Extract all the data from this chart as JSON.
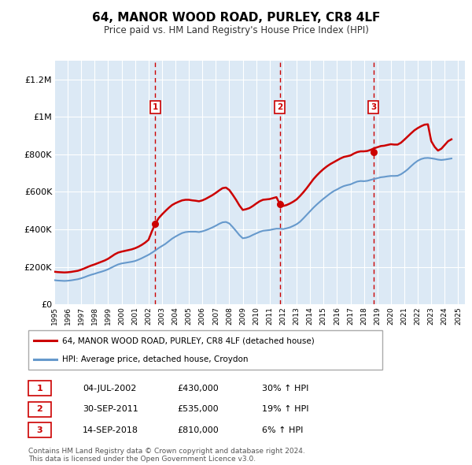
{
  "title": "64, MANOR WOOD ROAD, PURLEY, CR8 4LF",
  "subtitle": "Price paid vs. HM Land Registry's House Price Index (HPI)",
  "ylabel_ticks": [
    "£0",
    "£200K",
    "£400K",
    "£600K",
    "£800K",
    "£1M",
    "£1.2M"
  ],
  "ytick_values": [
    0,
    200000,
    400000,
    600000,
    800000,
    1000000,
    1200000
  ],
  "ylim": [
    0,
    1300000
  ],
  "xlim_start": 1995.0,
  "xlim_end": 2025.5,
  "bg_color": "#dce9f5",
  "red_line_color": "#cc0000",
  "blue_line_color": "#6699cc",
  "dashed_vline_color": "#cc0000",
  "sale_markers": [
    {
      "date_num": 2002.5,
      "price": 430000,
      "label": "1"
    },
    {
      "date_num": 2011.75,
      "price": 535000,
      "label": "2"
    },
    {
      "date_num": 2018.7,
      "price": 810000,
      "label": "3"
    }
  ],
  "legend_entries": [
    {
      "label": "64, MANOR WOOD ROAD, PURLEY, CR8 4LF (detached house)",
      "color": "#cc0000",
      "lw": 2
    },
    {
      "label": "HPI: Average price, detached house, Croydon",
      "color": "#6699cc",
      "lw": 2
    }
  ],
  "table_rows": [
    {
      "num": "1",
      "date": "04-JUL-2002",
      "price": "£430,000",
      "pct": "30% ↑ HPI"
    },
    {
      "num": "2",
      "date": "30-SEP-2011",
      "price": "£535,000",
      "pct": "19% ↑ HPI"
    },
    {
      "num": "3",
      "date": "14-SEP-2018",
      "price": "£810,000",
      "pct": "6% ↑ HPI"
    }
  ],
  "footnote": "Contains HM Land Registry data © Crown copyright and database right 2024.\nThis data is licensed under the Open Government Licence v3.0.",
  "hpi_data": {
    "years": [
      1995.0,
      1995.25,
      1995.5,
      1995.75,
      1996.0,
      1996.25,
      1996.5,
      1996.75,
      1997.0,
      1997.25,
      1997.5,
      1997.75,
      1998.0,
      1998.25,
      1998.5,
      1998.75,
      1999.0,
      1999.25,
      1999.5,
      1999.75,
      2000.0,
      2000.25,
      2000.5,
      2000.75,
      2001.0,
      2001.25,
      2001.5,
      2001.75,
      2002.0,
      2002.25,
      2002.5,
      2002.75,
      2003.0,
      2003.25,
      2003.5,
      2003.75,
      2004.0,
      2004.25,
      2004.5,
      2004.75,
      2005.0,
      2005.25,
      2005.5,
      2005.75,
      2006.0,
      2006.25,
      2006.5,
      2006.75,
      2007.0,
      2007.25,
      2007.5,
      2007.75,
      2008.0,
      2008.25,
      2008.5,
      2008.75,
      2009.0,
      2009.25,
      2009.5,
      2009.75,
      2010.0,
      2010.25,
      2010.5,
      2010.75,
      2011.0,
      2011.25,
      2011.5,
      2011.75,
      2012.0,
      2012.25,
      2012.5,
      2012.75,
      2013.0,
      2013.25,
      2013.5,
      2013.75,
      2014.0,
      2014.25,
      2014.5,
      2014.75,
      2015.0,
      2015.25,
      2015.5,
      2015.75,
      2016.0,
      2016.25,
      2016.5,
      2016.75,
      2017.0,
      2017.25,
      2017.5,
      2017.75,
      2018.0,
      2018.25,
      2018.5,
      2018.75,
      2019.0,
      2019.25,
      2019.5,
      2019.75,
      2020.0,
      2020.25,
      2020.5,
      2020.75,
      2021.0,
      2021.25,
      2021.5,
      2021.75,
      2022.0,
      2022.25,
      2022.5,
      2022.75,
      2023.0,
      2023.25,
      2023.5,
      2023.75,
      2024.0,
      2024.25,
      2024.5
    ],
    "values": [
      130000,
      128000,
      127000,
      126000,
      127000,
      129000,
      132000,
      135000,
      140000,
      146000,
      153000,
      159000,
      164000,
      170000,
      175000,
      181000,
      188000,
      197000,
      206000,
      214000,
      219000,
      222000,
      225000,
      228000,
      232000,
      239000,
      247000,
      256000,
      265000,
      276000,
      288000,
      301000,
      312000,
      323000,
      337000,
      351000,
      362000,
      372000,
      381000,
      386000,
      388000,
      388000,
      388000,
      386000,
      390000,
      396000,
      403000,
      411000,
      420000,
      430000,
      438000,
      440000,
      432000,
      413000,
      392000,
      370000,
      353000,
      356000,
      362000,
      371000,
      379000,
      387000,
      393000,
      395000,
      397000,
      401000,
      404000,
      404000,
      402000,
      406000,
      411000,
      419000,
      428000,
      441000,
      459000,
      478000,
      497000,
      516000,
      533000,
      549000,
      564000,
      578000,
      592000,
      604000,
      613000,
      623000,
      631000,
      636000,
      640000,
      648000,
      655000,
      658000,
      657000,
      659000,
      664000,
      669000,
      673000,
      678000,
      680000,
      683000,
      685000,
      685000,
      686000,
      694000,
      706000,
      720000,
      737000,
      753000,
      766000,
      775000,
      780000,
      781000,
      779000,
      776000,
      772000,
      770000,
      772000,
      775000,
      778000
    ]
  },
  "red_data": {
    "years": [
      1995.0,
      1995.25,
      1995.5,
      1995.75,
      1996.0,
      1996.25,
      1996.5,
      1996.75,
      1997.0,
      1997.25,
      1997.5,
      1997.75,
      1998.0,
      1998.25,
      1998.5,
      1998.75,
      1999.0,
      1999.25,
      1999.5,
      1999.75,
      2000.0,
      2000.25,
      2000.5,
      2000.75,
      2001.0,
      2001.25,
      2001.5,
      2001.75,
      2002.0,
      2002.25,
      2002.5,
      2002.75,
      2003.0,
      2003.25,
      2003.5,
      2003.75,
      2004.0,
      2004.25,
      2004.5,
      2004.75,
      2005.0,
      2005.25,
      2005.5,
      2005.75,
      2006.0,
      2006.25,
      2006.5,
      2006.75,
      2007.0,
      2007.25,
      2007.5,
      2007.75,
      2008.0,
      2008.25,
      2008.5,
      2008.75,
      2009.0,
      2009.25,
      2009.5,
      2009.75,
      2010.0,
      2010.25,
      2010.5,
      2010.75,
      2011.0,
      2011.25,
      2011.5,
      2011.75,
      2012.0,
      2012.25,
      2012.5,
      2012.75,
      2013.0,
      2013.25,
      2013.5,
      2013.75,
      2014.0,
      2014.25,
      2014.5,
      2014.75,
      2015.0,
      2015.25,
      2015.5,
      2015.75,
      2016.0,
      2016.25,
      2016.5,
      2016.75,
      2017.0,
      2017.25,
      2017.5,
      2017.75,
      2018.0,
      2018.25,
      2018.5,
      2018.75,
      2019.0,
      2019.25,
      2019.5,
      2019.75,
      2020.0,
      2020.25,
      2020.5,
      2020.75,
      2021.0,
      2021.25,
      2021.5,
      2021.75,
      2022.0,
      2022.25,
      2022.5,
      2022.75,
      2023.0,
      2023.25,
      2023.5,
      2023.75,
      2024.0,
      2024.25,
      2024.5
    ],
    "values": [
      175000,
      173000,
      172000,
      171000,
      172000,
      174000,
      177000,
      180000,
      186000,
      193000,
      201000,
      208000,
      214000,
      221000,
      228000,
      235000,
      244000,
      256000,
      268000,
      277000,
      282000,
      286000,
      290000,
      294000,
      300000,
      308000,
      318000,
      330000,
      345000,
      390000,
      430000,
      460000,
      480000,
      498000,
      515000,
      530000,
      540000,
      548000,
      555000,
      558000,
      558000,
      555000,
      553000,
      550000,
      555000,
      563000,
      573000,
      583000,
      595000,
      608000,
      620000,
      623000,
      610000,
      585000,
      558000,
      528000,
      504000,
      508000,
      514000,
      525000,
      538000,
      550000,
      558000,
      560000,
      562000,
      567000,
      572000,
      535000,
      525000,
      530000,
      538000,
      548000,
      560000,
      578000,
      598000,
      620000,
      644000,
      668000,
      688000,
      706000,
      722000,
      736000,
      748000,
      758000,
      768000,
      778000,
      786000,
      790000,
      794000,
      804000,
      812000,
      816000,
      816000,
      818000,
      824000,
      832000,
      838000,
      844000,
      846000,
      850000,
      854000,
      852000,
      852000,
      862000,
      878000,
      895000,
      912000,
      928000,
      940000,
      950000,
      958000,
      960000,
      870000,
      840000,
      820000,
      830000,
      850000,
      870000,
      880000
    ]
  }
}
